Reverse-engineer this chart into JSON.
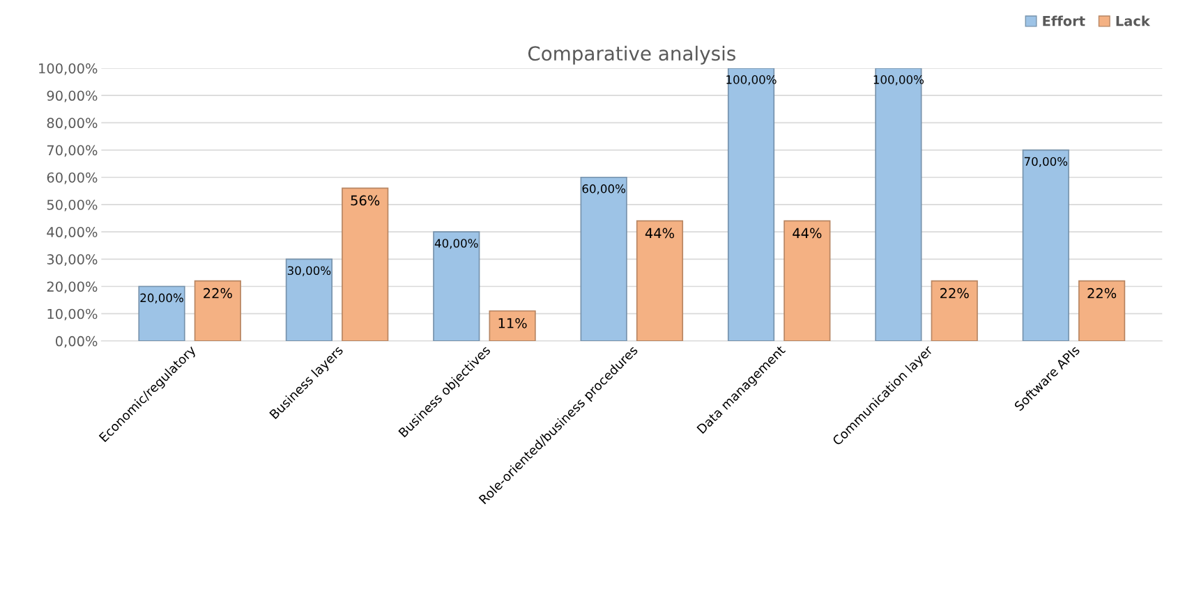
{
  "chart_data": {
    "type": "bar",
    "title": "Comparative analysis",
    "categories": [
      "Economic/regulatory",
      "Business layers",
      "Business objectives",
      "Role-oriented/business procedures",
      "Data management",
      "Communication layer",
      "Software APIs"
    ],
    "series": [
      {
        "name": "Effort",
        "color": "#9dc3e6",
        "values": [
          20,
          30,
          40,
          60,
          100,
          100,
          70
        ],
        "value_labels": [
          "20,00%",
          "30,00%",
          "40,00%",
          "60,00%",
          "100,00%",
          "100,00%",
          "70,00%"
        ]
      },
      {
        "name": "Lack",
        "color": "#f4b183",
        "values": [
          22,
          56,
          11,
          44,
          44,
          22,
          22
        ],
        "value_labels": [
          "22%",
          "56%",
          "11%",
          "44%",
          "44%",
          "22%",
          "22%"
        ]
      }
    ],
    "ylim": [
      0,
      100
    ],
    "yticks": [
      {
        "value": 0,
        "label": "0,00%"
      },
      {
        "value": 10,
        "label": "10,00%"
      },
      {
        "value": 20,
        "label": "20,00%"
      },
      {
        "value": 30,
        "label": "30,00%"
      },
      {
        "value": 40,
        "label": "40,00%"
      },
      {
        "value": 50,
        "label": "50,00%"
      },
      {
        "value": 60,
        "label": "60,00%"
      },
      {
        "value": 70,
        "label": "70,00%"
      },
      {
        "value": 80,
        "label": "80,00%"
      },
      {
        "value": 90,
        "label": "90,00%"
      },
      {
        "value": 100,
        "label": "100,00%"
      }
    ],
    "grid": "y",
    "legend": "top right"
  }
}
